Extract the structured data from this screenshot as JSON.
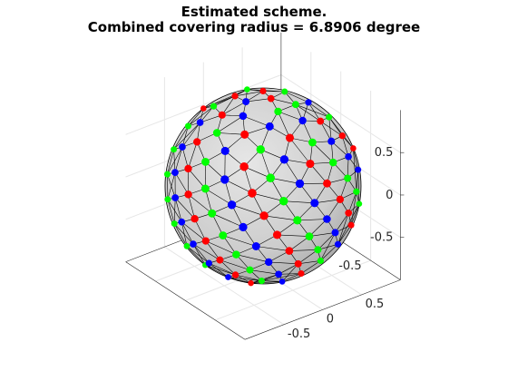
{
  "chart_data": {
    "type": "scatter",
    "title": [
      "Estimated scheme.",
      "Combined covering radius = 6.8906 degree"
    ],
    "projection": "3d",
    "view": {
      "azimuth_deg": -37.5,
      "elevation_deg": 30
    },
    "surface": {
      "shape": "unit-sphere",
      "color": "#c8c8c8",
      "mesh": "triangulated",
      "edge_color": "#000000"
    },
    "axes": {
      "x": {
        "lim": [
          -1,
          1
        ],
        "ticks": [
          -0.5,
          0,
          0.5
        ],
        "tick_labels": [
          "-0.5",
          "0",
          "0.5"
        ]
      },
      "y": {
        "lim": [
          -1,
          1
        ],
        "ticks": [
          -0.5,
          0,
          0.5
        ],
        "tick_labels": [
          "-0.5",
          "0",
          "0.5"
        ]
      },
      "z": {
        "lim": [
          -1,
          1
        ],
        "ticks": [
          -0.5,
          0,
          0.5
        ],
        "tick_labels": [
          "-0.5",
          "0",
          "0.5"
        ]
      }
    },
    "grid": true,
    "legend": "none",
    "series": [
      {
        "color": "#ff0000",
        "marker": "filled-circle",
        "count": 64
      },
      {
        "color": "#0000ff",
        "marker": "filled-circle",
        "count": 64
      },
      {
        "color": "#00ff00",
        "marker": "filled-circle",
        "count": 64
      }
    ]
  }
}
